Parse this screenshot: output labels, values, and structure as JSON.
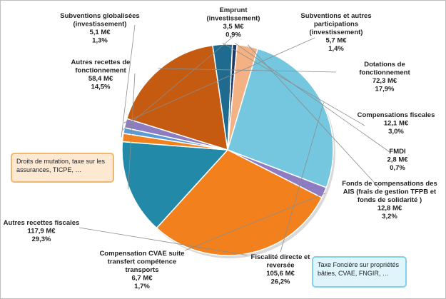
{
  "chart_data": {
    "type": "pie",
    "title": "",
    "unit": "M€",
    "slices": [
      {
        "name": "Emprunt (investissement)",
        "label_lines": [
          "Emprunt",
          "(investissement)"
        ],
        "value_text": "3,5 M€",
        "pct_text": "0,9%",
        "value": 3.5,
        "percent": 0.9,
        "color": "#5b9bd5"
      },
      {
        "name": "Subventions et autres participations (investissement)",
        "label_lines": [
          "Subventions et autres",
          "participations",
          "(investissement)"
        ],
        "value_text": "5,7 M€",
        "pct_text": "1,4%",
        "value": 5.7,
        "percent": 1.4,
        "color": "#8e7cc3"
      },
      {
        "name": "Dotations de fonctionnement",
        "label_lines": [
          "Dotations de",
          "fonctionnement"
        ],
        "value_text": "72,3 M€",
        "pct_text": "17,9%",
        "value": 72.3,
        "percent": 17.9,
        "color": "#c55a11"
      },
      {
        "name": "Compensations fiscales",
        "label_lines": [
          "Compensations fiscales"
        ],
        "value_text": "12,1 M€",
        "pct_text": "3,0%",
        "value": 12.1,
        "percent": 3.0,
        "color": "#1f6b8f"
      },
      {
        "name": "FMDI",
        "label_lines": [
          "FMDI"
        ],
        "value_text": "2,8 M€",
        "pct_text": "0,7%",
        "value": 2.8,
        "percent": 0.7,
        "color": "#203864"
      },
      {
        "name": "Fonds de compensations des AIS (frais de gestion TFPB et fonds de solidarité)",
        "label_lines": [
          "Fonds de compensations des",
          "AIS (frais de gestion TFPB et",
          "fonds de solidarité )"
        ],
        "value_text": "12,8 M€",
        "pct_text": "3,2%",
        "value": 12.8,
        "percent": 3.2,
        "color": "#f4b183"
      },
      {
        "name": "Fiscalité directe et reversée",
        "label_lines": [
          "Fiscalité directe et",
          "reversée"
        ],
        "value_text": "105,6 M€",
        "pct_text": "26,2%",
        "value": 105.6,
        "percent": 26.2,
        "color": "#74c7de"
      },
      {
        "name": "Compensation CVAE suite transfert compétence transports",
        "label_lines": [
          "Compensation CVAE suite",
          "transfert compétence",
          "transports"
        ],
        "value_text": "6,7 M€",
        "pct_text": "1,7%",
        "value": 6.7,
        "percent": 1.7,
        "color": "#8e7cc3"
      },
      {
        "name": "Autres recettes fiscales",
        "label_lines": [
          "Autres recettes fiscales"
        ],
        "value_text": "117,9 M€",
        "pct_text": "29,3%",
        "value": 117.9,
        "percent": 29.3,
        "color": "#f2811d"
      },
      {
        "name": "Autres recettes de fonctionnement",
        "label_lines": [
          "Autres recettes de",
          "fonctionnement"
        ],
        "value_text": "58,4 M€",
        "pct_text": "14,5%",
        "value": 58.4,
        "percent": 14.5,
        "color": "#2389a8"
      },
      {
        "name": "Subventions globalisées (investissement)",
        "label_lines": [
          "Subventions globalisées",
          "(investissement)"
        ],
        "value_text": "5,1 M€",
        "pct_text": "1,3%",
        "value": 5.1,
        "percent": 1.3,
        "color": "#f2811d"
      }
    ],
    "annotations": [
      {
        "target": "Autres recettes fiscales",
        "text": "Droits de mutation, taxe sur les assurances, TICPE, …"
      },
      {
        "target": "Fiscalité directe et reversée",
        "text": "Taxe Foncière sur propriétés bâties, CVAE, FNGIR, …"
      }
    ]
  }
}
